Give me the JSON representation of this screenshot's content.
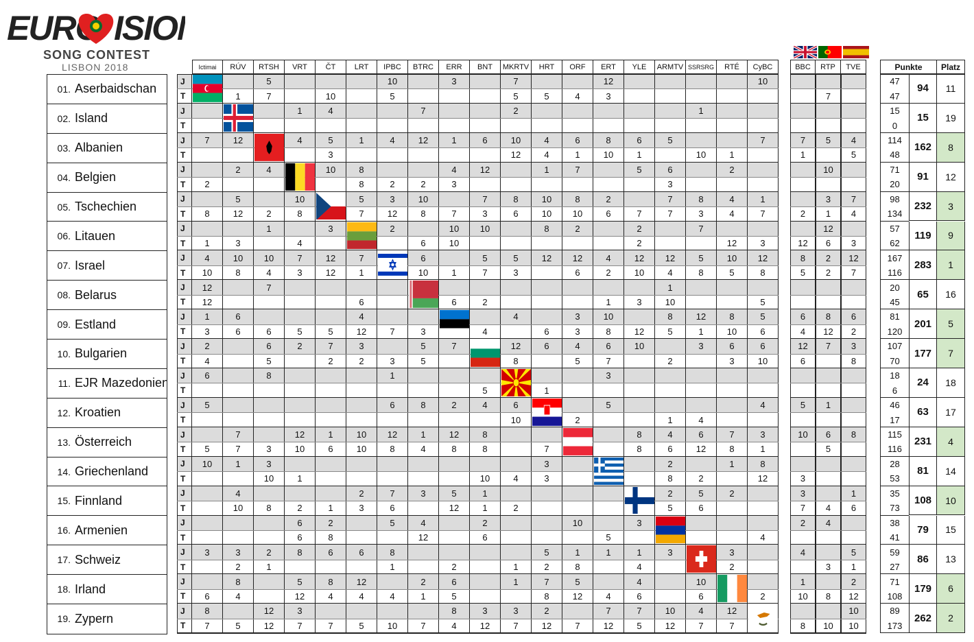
{
  "logo": {
    "brand": "EUROVISION",
    "line1": "SONG CONTEST",
    "line2": "LISBON 2018"
  },
  "juries": [
    "Ictimai",
    "RÚV",
    "RTSH",
    "VRT",
    "ČT",
    "LRT",
    "IPBC",
    "BTRC",
    "ERR",
    "BNT",
    "MKRTV",
    "HRT",
    "ORF",
    "ERT",
    "YLE",
    "ARMTV",
    "SSRSRG",
    "RTÉ",
    "CyBC"
  ],
  "big": [
    "BBC",
    "RTP",
    "TVE"
  ],
  "headers": {
    "points": "Punkte",
    "place": "Platz",
    "jury": "J",
    "televote": "T"
  },
  "colors": {
    "jury_row": "#dcdcdc",
    "top10": "#d3e8c8"
  },
  "countries": [
    {
      "num": "01.",
      "name": "Aserbaidschan",
      "flag": "az",
      "J": [
        "",
        "",
        "5",
        "",
        "",
        "",
        "10",
        "",
        "3",
        "",
        "7",
        "",
        "",
        "12",
        "",
        "",
        "",
        "",
        "10"
      ],
      "T": [
        "",
        "1",
        "7",
        "",
        "10",
        "",
        "5",
        "",
        "",
        "",
        "5",
        "5",
        "4",
        "3",
        "",
        "",
        "",
        "",
        ""
      ],
      "bJ": [
        "",
        "",
        ""
      ],
      "bT": [
        "",
        "7",
        ""
      ],
      "sj": "47",
      "st": "47",
      "total": "94",
      "place": "11",
      "top10": false
    },
    {
      "num": "02.",
      "name": "Island",
      "flag": "is",
      "J": [
        "",
        "",
        "",
        "1",
        "4",
        "",
        "",
        "7",
        "",
        "",
        "2",
        "",
        "",
        "",
        "",
        "",
        "1",
        "",
        ""
      ],
      "T": [
        "",
        "",
        "",
        "",
        "",
        "",
        "",
        "",
        "",
        "",
        "",
        "",
        "",
        "",
        "",
        "",
        "",
        "",
        ""
      ],
      "bJ": [
        "",
        "",
        ""
      ],
      "bT": [
        "",
        "",
        ""
      ],
      "sj": "15",
      "st": "0",
      "total": "15",
      "place": "19",
      "top10": false
    },
    {
      "num": "03.",
      "name": "Albanien",
      "flag": "al",
      "J": [
        "7",
        "12",
        "",
        "4",
        "5",
        "1",
        "4",
        "12",
        "1",
        "6",
        "10",
        "4",
        "6",
        "8",
        "6",
        "5",
        "",
        "",
        "7"
      ],
      "T": [
        "",
        "",
        "",
        "",
        "3",
        "",
        "",
        "",
        "",
        "",
        "12",
        "4",
        "1",
        "10",
        "1",
        "",
        "10",
        "1",
        ""
      ],
      "bJ": [
        "7",
        "5",
        "4"
      ],
      "bT": [
        "1",
        "",
        "5"
      ],
      "sj": "114",
      "st": "48",
      "total": "162",
      "place": "8",
      "top10": true
    },
    {
      "num": "04.",
      "name": "Belgien",
      "flag": "be",
      "J": [
        "",
        "2",
        "4",
        "",
        "10",
        "8",
        "",
        "",
        "4",
        "12",
        "",
        "1",
        "7",
        "",
        "5",
        "6",
        "",
        "2",
        ""
      ],
      "T": [
        "2",
        "",
        "",
        "",
        "",
        "8",
        "2",
        "2",
        "3",
        "",
        "",
        "",
        "",
        "",
        "",
        "3",
        "",
        "",
        ""
      ],
      "bJ": [
        "",
        "10",
        ""
      ],
      "bT": [
        "",
        "",
        ""
      ],
      "sj": "71",
      "st": "20",
      "total": "91",
      "place": "12",
      "top10": false
    },
    {
      "num": "05.",
      "name": "Tschechien",
      "flag": "cz",
      "J": [
        "",
        "5",
        "",
        "10",
        "",
        "5",
        "3",
        "10",
        "",
        "7",
        "8",
        "10",
        "8",
        "2",
        "",
        "7",
        "8",
        "4",
        "1"
      ],
      "T": [
        "8",
        "12",
        "2",
        "8",
        "",
        "7",
        "12",
        "8",
        "7",
        "3",
        "6",
        "10",
        "10",
        "6",
        "7",
        "7",
        "3",
        "4",
        "7"
      ],
      "bJ": [
        "",
        "3",
        "7"
      ],
      "bT": [
        "2",
        "1",
        "4"
      ],
      "sj": "98",
      "st": "134",
      "total": "232",
      "place": "3",
      "top10": true
    },
    {
      "num": "06.",
      "name": "Litauen",
      "flag": "lt",
      "J": [
        "",
        "",
        "1",
        "",
        "3",
        "",
        "2",
        "",
        "10",
        "10",
        "",
        "8",
        "2",
        "",
        "2",
        "",
        "7",
        "",
        ""
      ],
      "T": [
        "1",
        "3",
        "",
        "4",
        "",
        "",
        "",
        "6",
        "10",
        "",
        "",
        "",
        "",
        "",
        "2",
        "",
        "",
        "12",
        "3"
      ],
      "bJ": [
        "",
        "12",
        ""
      ],
      "bT": [
        "12",
        "6",
        "3"
      ],
      "sj": "57",
      "st": "62",
      "total": "119",
      "place": "9",
      "top10": true
    },
    {
      "num": "07.",
      "name": "Israel",
      "flag": "il",
      "J": [
        "4",
        "10",
        "10",
        "7",
        "12",
        "7",
        "",
        "6",
        "",
        "5",
        "5",
        "12",
        "12",
        "4",
        "12",
        "12",
        "5",
        "10",
        "12"
      ],
      "T": [
        "10",
        "8",
        "4",
        "3",
        "12",
        "1",
        "",
        "10",
        "1",
        "7",
        "3",
        "",
        "6",
        "2",
        "10",
        "4",
        "8",
        "5",
        "8"
      ],
      "bJ": [
        "8",
        "2",
        "12"
      ],
      "bT": [
        "5",
        "2",
        "7"
      ],
      "sj": "167",
      "st": "116",
      "total": "283",
      "place": "1",
      "top10": true
    },
    {
      "num": "08.",
      "name": "Belarus",
      "flag": "by",
      "J": [
        "12",
        "",
        "7",
        "",
        "",
        "",
        "",
        "",
        "",
        "",
        "",
        "",
        "",
        "",
        "",
        "1",
        "",
        "",
        ""
      ],
      "T": [
        "12",
        "",
        "",
        "",
        "",
        "6",
        "",
        "",
        "6",
        "2",
        "",
        "",
        "",
        "1",
        "3",
        "10",
        "",
        "",
        "5"
      ],
      "bJ": [
        "",
        "",
        ""
      ],
      "bT": [
        "",
        "",
        ""
      ],
      "sj": "20",
      "st": "45",
      "total": "65",
      "place": "16",
      "top10": false
    },
    {
      "num": "09.",
      "name": "Estland",
      "flag": "ee",
      "J": [
        "1",
        "6",
        "",
        "",
        "",
        "4",
        "",
        "",
        "",
        "",
        "4",
        "",
        "3",
        "10",
        "",
        "8",
        "12",
        "8",
        "5"
      ],
      "T": [
        "3",
        "6",
        "6",
        "5",
        "5",
        "12",
        "7",
        "3",
        "",
        "4",
        "",
        "6",
        "3",
        "8",
        "12",
        "5",
        "1",
        "10",
        "6"
      ],
      "bJ": [
        "6",
        "8",
        "6"
      ],
      "bT": [
        "4",
        "12",
        "2"
      ],
      "sj": "81",
      "st": "120",
      "total": "201",
      "place": "5",
      "top10": true
    },
    {
      "num": "10.",
      "name": "Bulgarien",
      "flag": "bg",
      "J": [
        "2",
        "",
        "6",
        "2",
        "7",
        "3",
        "",
        "5",
        "7",
        "",
        "12",
        "6",
        "4",
        "6",
        "10",
        "",
        "3",
        "6",
        "6"
      ],
      "T": [
        "4",
        "",
        "5",
        "",
        "2",
        "2",
        "3",
        "5",
        "",
        "",
        "8",
        "",
        "5",
        "7",
        "",
        "2",
        "",
        "3",
        "10"
      ],
      "bJ": [
        "12",
        "7",
        "3"
      ],
      "bT": [
        "6",
        "",
        "8"
      ],
      "sj": "107",
      "st": "70",
      "total": "177",
      "place": "7",
      "top10": true
    },
    {
      "num": "11.",
      "name": "EJR Mazedonien",
      "flag": "mk",
      "J": [
        "6",
        "",
        "8",
        "",
        "",
        "",
        "1",
        "",
        "",
        "",
        "",
        "",
        "",
        "3",
        "",
        "",
        "",
        "",
        ""
      ],
      "T": [
        "",
        "",
        "",
        "",
        "",
        "",
        "",
        "",
        "",
        "5",
        "",
        "1",
        "",
        "",
        "",
        "",
        "",
        "",
        ""
      ],
      "bJ": [
        "",
        "",
        ""
      ],
      "bT": [
        "",
        "",
        ""
      ],
      "sj": "18",
      "st": "6",
      "total": "24",
      "place": "18",
      "top10": false
    },
    {
      "num": "12.",
      "name": "Kroatien",
      "flag": "hr",
      "J": [
        "5",
        "",
        "",
        "",
        "",
        "",
        "6",
        "8",
        "2",
        "4",
        "6",
        "",
        "",
        "5",
        "",
        "",
        "",
        "",
        "4"
      ],
      "T": [
        "",
        "",
        "",
        "",
        "",
        "",
        "",
        "",
        "",
        "",
        "10",
        "",
        "2",
        "",
        "",
        "1",
        "4",
        "",
        ""
      ],
      "bJ": [
        "5",
        "1",
        ""
      ],
      "bT": [
        "",
        "",
        ""
      ],
      "sj": "46",
      "st": "17",
      "total": "63",
      "place": "17",
      "top10": false
    },
    {
      "num": "13.",
      "name": "Österreich",
      "flag": "at",
      "J": [
        "",
        "7",
        "",
        "12",
        "1",
        "10",
        "12",
        "1",
        "12",
        "8",
        "",
        "",
        "",
        "",
        "8",
        "4",
        "6",
        "7",
        "3"
      ],
      "T": [
        "5",
        "7",
        "3",
        "10",
        "6",
        "10",
        "8",
        "4",
        "8",
        "8",
        "",
        "7",
        "",
        "",
        "8",
        "6",
        "12",
        "8",
        "1"
      ],
      "bJ": [
        "10",
        "6",
        "8"
      ],
      "bT": [
        "",
        "5",
        ""
      ],
      "sj": "115",
      "st": "116",
      "total": "231",
      "place": "4",
      "top10": true
    },
    {
      "num": "14.",
      "name": "Griechenland",
      "flag": "gr",
      "J": [
        "10",
        "1",
        "3",
        "",
        "",
        "",
        "",
        "",
        "",
        "",
        "",
        "3",
        "",
        "",
        "",
        "2",
        "",
        "1",
        "8"
      ],
      "T": [
        "",
        "",
        "10",
        "1",
        "",
        "",
        "",
        "",
        "",
        "10",
        "4",
        "3",
        "",
        "",
        "",
        "8",
        "2",
        "",
        "12"
      ],
      "bJ": [
        "",
        "",
        ""
      ],
      "bT": [
        "3",
        "",
        ""
      ],
      "sj": "28",
      "st": "53",
      "total": "81",
      "place": "14",
      "top10": false
    },
    {
      "num": "15.",
      "name": "Finnland",
      "flag": "fi",
      "J": [
        "",
        "4",
        "",
        "",
        "",
        "2",
        "7",
        "3",
        "5",
        "1",
        "",
        "",
        "",
        "",
        "",
        "2",
        "5",
        "2",
        ""
      ],
      "T": [
        "",
        "10",
        "8",
        "2",
        "1",
        "3",
        "6",
        "",
        "12",
        "1",
        "2",
        "",
        "",
        "",
        "",
        "5",
        "6",
        "",
        ""
      ],
      "bJ": [
        "3",
        "",
        "1"
      ],
      "bT": [
        "7",
        "4",
        "6"
      ],
      "sj": "35",
      "st": "73",
      "total": "108",
      "place": "10",
      "top10": true
    },
    {
      "num": "16.",
      "name": "Armenien",
      "flag": "am",
      "J": [
        "",
        "",
        "",
        "6",
        "2",
        "",
        "5",
        "4",
        "",
        "2",
        "",
        "",
        "10",
        "",
        "3",
        "",
        "",
        "",
        ""
      ],
      "T": [
        "",
        "",
        "",
        "6",
        "8",
        "",
        "",
        "12",
        "",
        "6",
        "",
        "",
        "",
        "5",
        "",
        "",
        "",
        "",
        "4"
      ],
      "bJ": [
        "2",
        "4",
        ""
      ],
      "bT": [
        "",
        "",
        ""
      ],
      "sj": "38",
      "st": "41",
      "total": "79",
      "place": "15",
      "top10": false
    },
    {
      "num": "17.",
      "name": "Schweiz",
      "flag": "ch",
      "J": [
        "3",
        "3",
        "2",
        "8",
        "6",
        "6",
        "8",
        "",
        "",
        "",
        "",
        "5",
        "1",
        "1",
        "1",
        "3",
        "",
        "3",
        ""
      ],
      "T": [
        "",
        "2",
        "1",
        "",
        "",
        "",
        "1",
        "",
        "2",
        "",
        "1",
        "2",
        "8",
        "",
        "4",
        "",
        "",
        "2",
        ""
      ],
      "bJ": [
        "4",
        "",
        "5"
      ],
      "bT": [
        "",
        "3",
        "1"
      ],
      "sj": "59",
      "st": "27",
      "total": "86",
      "place": "13",
      "top10": false
    },
    {
      "num": "18.",
      "name": "Irland",
      "flag": "ie",
      "J": [
        "",
        "8",
        "",
        "5",
        "8",
        "12",
        "",
        "2",
        "6",
        "",
        "1",
        "7",
        "5",
        "",
        "4",
        "",
        "10",
        "",
        ""
      ],
      "T": [
        "6",
        "4",
        "",
        "12",
        "4",
        "4",
        "4",
        "1",
        "5",
        "",
        "",
        "8",
        "12",
        "4",
        "6",
        "",
        "6",
        "",
        "2"
      ],
      "bJ": [
        "1",
        "",
        "2"
      ],
      "bT": [
        "10",
        "8",
        "12"
      ],
      "sj": "71",
      "st": "108",
      "total": "179",
      "place": "6",
      "top10": true
    },
    {
      "num": "19.",
      "name": "Zypern",
      "flag": "cy",
      "J": [
        "8",
        "",
        "12",
        "3",
        "",
        "",
        "",
        "",
        "8",
        "3",
        "3",
        "2",
        "",
        "7",
        "7",
        "10",
        "4",
        "12",
        ""
      ],
      "T": [
        "7",
        "5",
        "12",
        "7",
        "7",
        "5",
        "10",
        "7",
        "4",
        "12",
        "7",
        "12",
        "7",
        "12",
        "5",
        "12",
        "7",
        "7",
        ""
      ],
      "bJ": [
        "",
        "",
        "10"
      ],
      "bT": [
        "8",
        "10",
        "10"
      ],
      "sj": "89",
      "st": "173",
      "total": "262",
      "place": "2",
      "top10": true
    }
  ]
}
